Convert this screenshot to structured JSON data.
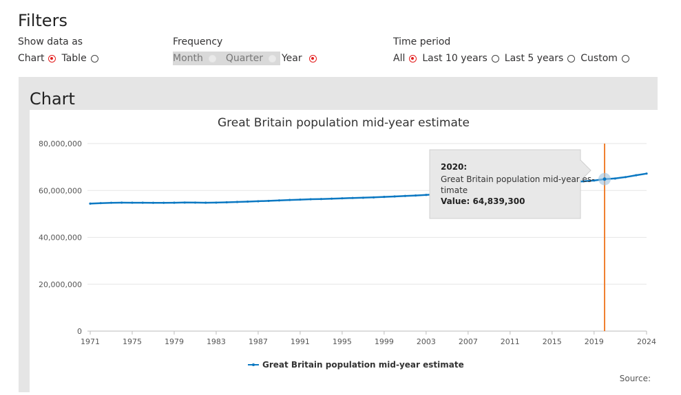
{
  "filters": {
    "title": "Filters",
    "show_data_as": {
      "label": "Show data as",
      "options": [
        {
          "label": "Chart",
          "checked": true
        },
        {
          "label": "Table",
          "checked": false
        }
      ]
    },
    "frequency": {
      "label": "Frequency",
      "options": [
        {
          "label": "Month",
          "checked": false,
          "disabled": true
        },
        {
          "label": "Quarter",
          "checked": false,
          "disabled": true
        },
        {
          "label": "Year",
          "checked": true,
          "disabled": false
        }
      ]
    },
    "time_period": {
      "label": "Time period",
      "options": [
        {
          "label": "All",
          "checked": true
        },
        {
          "label": "Last 10 years",
          "checked": false
        },
        {
          "label": "Last 5 years",
          "checked": false
        },
        {
          "label": "Custom",
          "checked": false
        }
      ]
    }
  },
  "chart_section": {
    "heading": "Chart",
    "source_label": "Source:"
  },
  "tooltip": {
    "year": "2020:",
    "series": "Great Britain population mid-year estimate",
    "value": "Value: 64,839,300"
  },
  "colors": {
    "series": "#0b78c2",
    "crosshair": "#f07f2e",
    "selected_radio": "#e31c1c"
  },
  "chart_data": {
    "type": "line",
    "title": "Great Britain population mid-year estimate",
    "xlabel": "",
    "ylabel": "",
    "xlim": [
      1971,
      2024
    ],
    "ylim": [
      0,
      80000000
    ],
    "xticks": [
      1971,
      1975,
      1979,
      1983,
      1987,
      1991,
      1995,
      1999,
      2003,
      2007,
      2011,
      2015,
      2019,
      2024
    ],
    "yticks": [
      "0",
      "20,000,000",
      "40,000,000",
      "60,000,000",
      "80,000,000"
    ],
    "legend": "bottom",
    "grid": true,
    "highlight": {
      "x": 2020,
      "y": 64839300
    },
    "x": [
      1971,
      1972,
      1973,
      1974,
      1975,
      1976,
      1977,
      1978,
      1979,
      1980,
      1981,
      1982,
      1983,
      1984,
      1985,
      1986,
      1987,
      1988,
      1989,
      1990,
      1991,
      1992,
      1993,
      1994,
      1995,
      1996,
      1997,
      1998,
      1999,
      2000,
      2001,
      2002,
      2003,
      2004,
      2005,
      2006,
      2007,
      2008,
      2009,
      2010,
      2011,
      2012,
      2013,
      2014,
      2015,
      2016,
      2017,
      2018,
      2019,
      2020,
      2021,
      2022,
      2023,
      2024
    ],
    "series": [
      {
        "name": "Great Britain population mid-year estimate",
        "values": [
          54400000,
          54600000,
          54750000,
          54800000,
          54780000,
          54760000,
          54730000,
          54730000,
          54760000,
          54850000,
          54820000,
          54780000,
          54820000,
          54950000,
          55100000,
          55250000,
          55400000,
          55550000,
          55750000,
          55950000,
          56100000,
          56250000,
          56350000,
          56500000,
          56650000,
          56800000,
          56900000,
          57050000,
          57250000,
          57450000,
          57650000,
          57850000,
          58100000,
          58400000,
          58800000,
          59150000,
          59550000,
          59950000,
          60300000,
          60700000,
          61150000,
          61550000,
          61900000,
          62300000,
          62700000,
          63100000,
          63500000,
          63900000,
          64250000,
          64839300,
          65100000,
          65700000,
          66500000,
          67200000
        ]
      }
    ]
  }
}
